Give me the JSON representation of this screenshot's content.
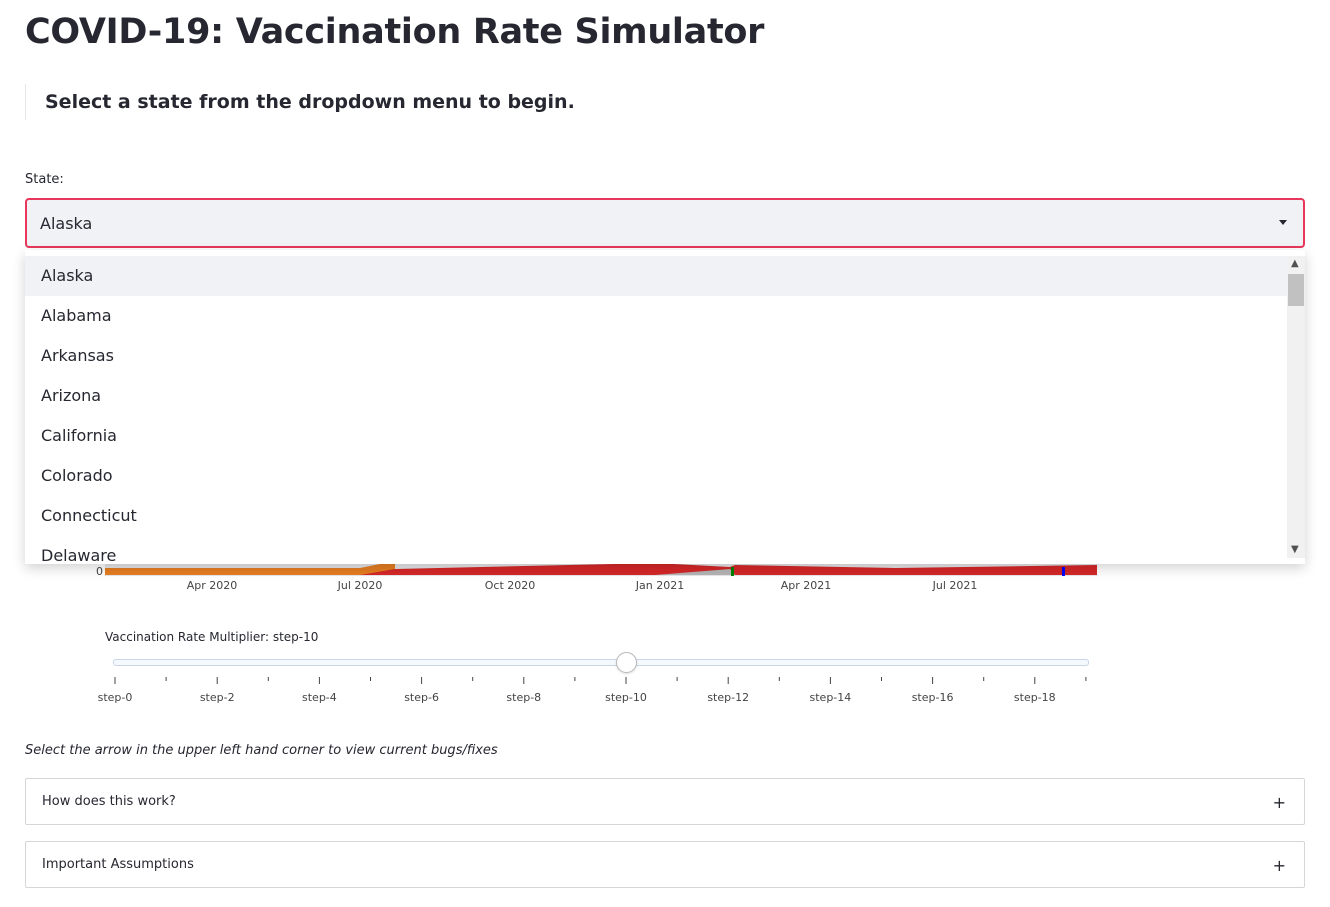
{
  "page": {
    "title": "COVID-19: Vaccination Rate Simulator",
    "intro": "Select a state from the dropdown menu to begin."
  },
  "state_select": {
    "label": "State:",
    "value": "Alaska",
    "options": [
      "Alaska",
      "Alabama",
      "Arkansas",
      "Arizona",
      "California",
      "Colorado",
      "Connecticut",
      "Delaware"
    ],
    "focus_color": "#e8375b"
  },
  "chart_data": {
    "type": "area",
    "y_tick_labels": [
      "0"
    ],
    "x_tick_labels": [
      "Apr 2020",
      "Jul 2020",
      "Oct 2020",
      "Jan 2021",
      "Apr 2021",
      "Jul 2021"
    ],
    "series_colors": [
      "#e67e22",
      "#d62728"
    ],
    "markers_colors": [
      "#008000",
      "#0000ff"
    ]
  },
  "slider": {
    "label": "Vaccination Rate Multiplier: step-10",
    "value": "step-10",
    "tick_labels": [
      "step-0",
      "step-2",
      "step-4",
      "step-6",
      "step-8",
      "step-10",
      "step-12",
      "step-14",
      "step-16",
      "step-18"
    ]
  },
  "hint": "Select the arrow in the upper left hand corner to view current bugs/fixes",
  "expanders": [
    {
      "label": "How does this work?",
      "icon": "plus-icon"
    },
    {
      "label": "Important Assumptions",
      "icon": "plus-icon"
    }
  ]
}
